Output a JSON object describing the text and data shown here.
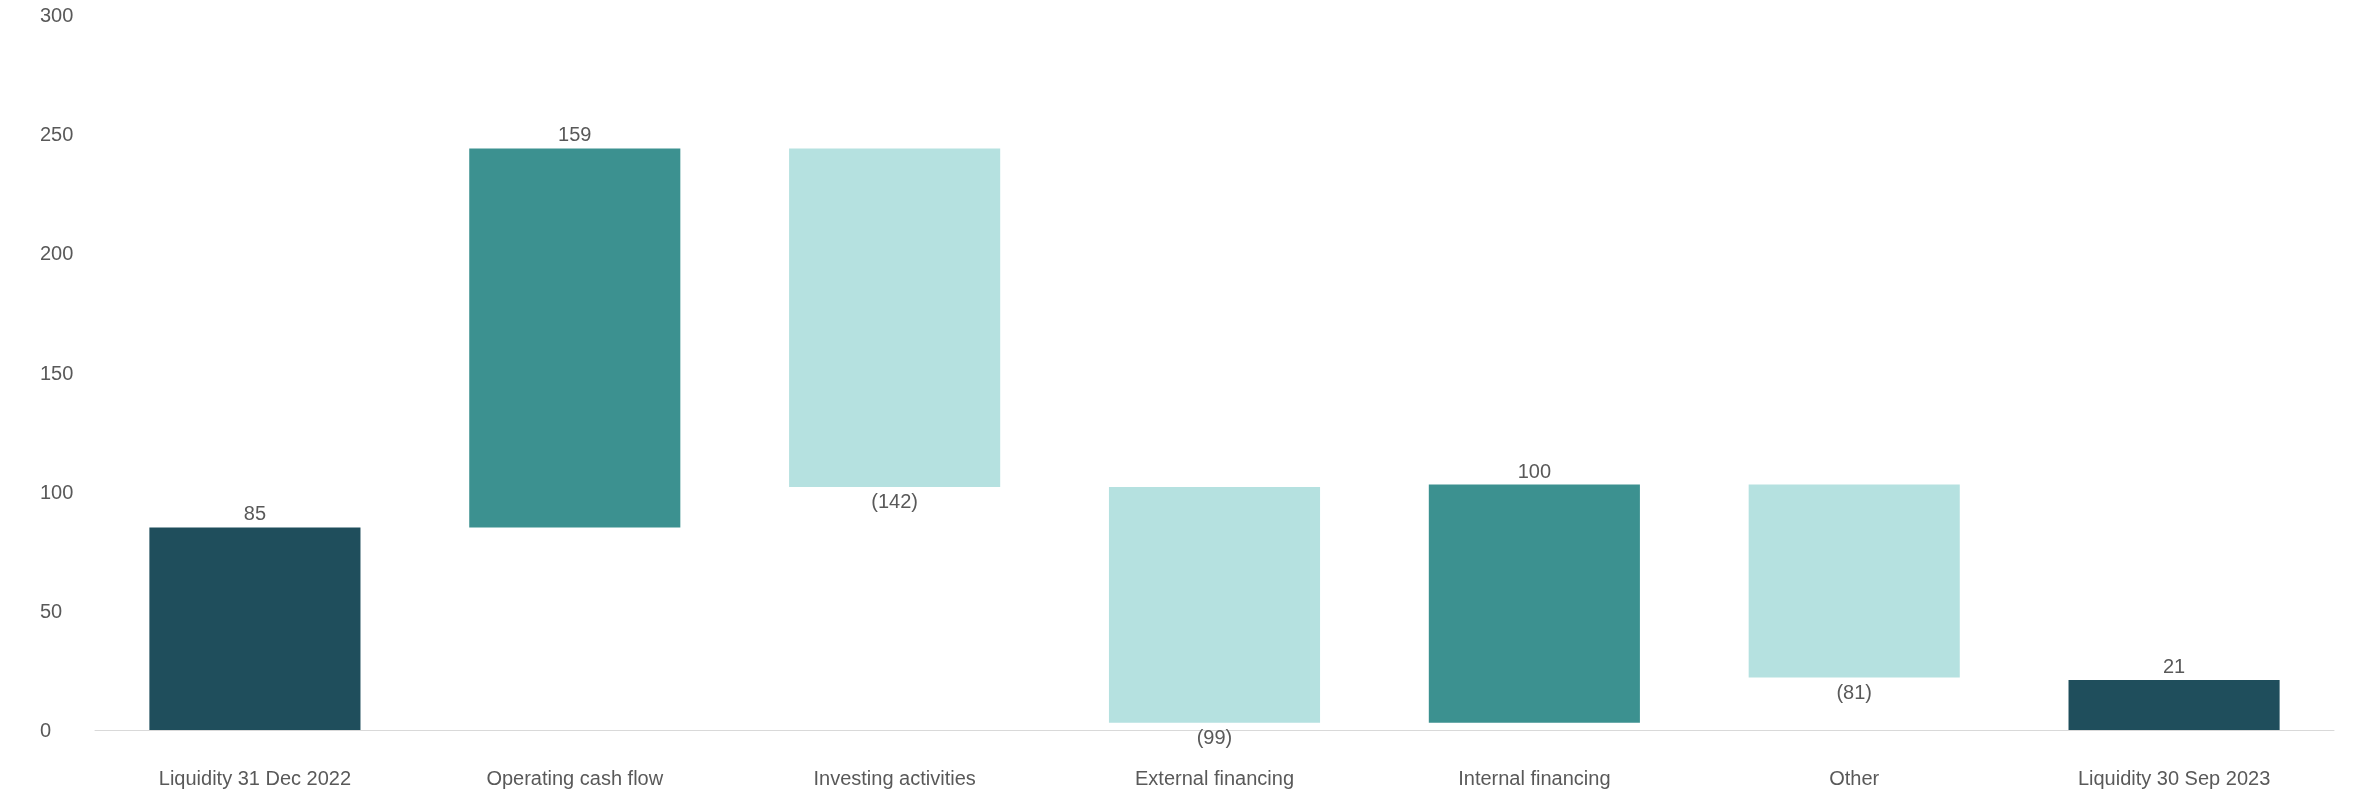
{
  "chart_data": {
    "type": "bar",
    "categories": [
      "Liquidity 31 Dec 2022",
      "Operating cash flow",
      "Investing activities",
      "External financing",
      "Internal financing",
      "Other",
      "Liquidity 30 Sep 2023"
    ],
    "values": [
      85,
      159,
      -142,
      -99,
      100,
      -81,
      21
    ],
    "base": [
      0,
      85,
      244,
      102,
      3,
      103,
      0
    ],
    "colors": [
      "#1f4e5c",
      "#3c9190",
      "#b5e1e0",
      "#b5e1e0",
      "#3c9190",
      "#b5e1e0",
      "#1f4e5c"
    ],
    "value_labels": [
      "85",
      "159",
      "(142)",
      "(99)",
      "100",
      "(81)",
      "21"
    ],
    "ylim": [
      0,
      300
    ],
    "yticks": [
      0,
      50,
      100,
      150,
      200,
      250,
      300
    ],
    "grid": false
  }
}
